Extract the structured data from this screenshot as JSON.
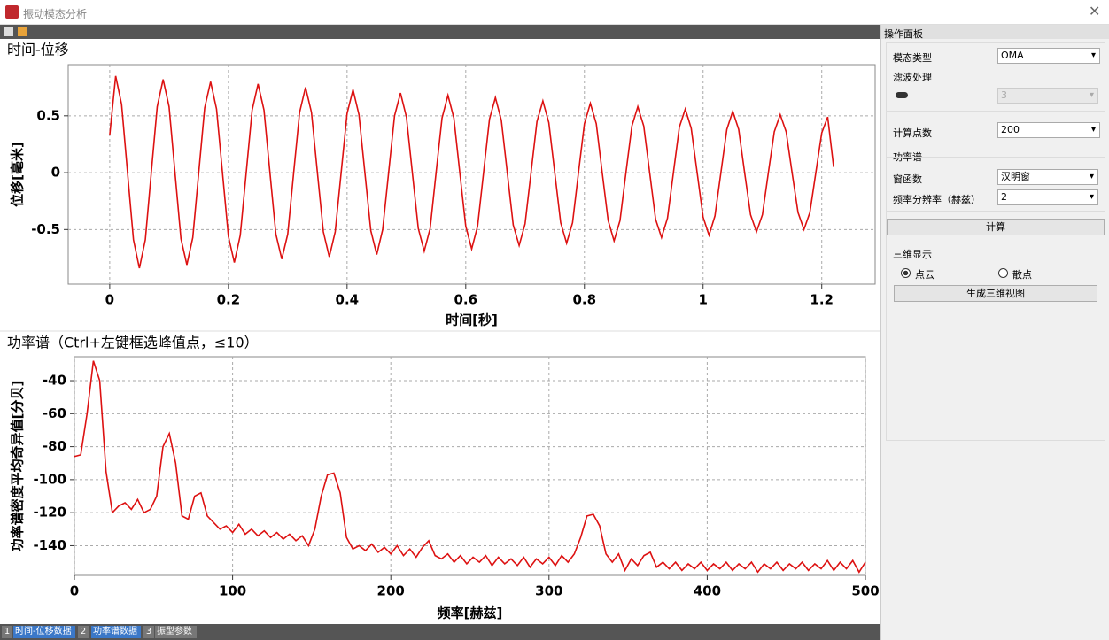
{
  "window": {
    "title": "振动模态分析"
  },
  "chart_data": [
    {
      "type": "line",
      "title": "时间-位移",
      "xlabel": "时间[秒]",
      "ylabel": "位移[毫米]",
      "color": "#dd1111",
      "grid": true,
      "xlim": [
        -0.07,
        1.29
      ],
      "ylim": [
        -0.98,
        0.95
      ],
      "xticks": [
        0,
        0.2,
        0.4,
        0.6,
        0.8,
        1,
        1.2
      ],
      "yticks": [
        -0.5,
        0,
        0.5
      ],
      "x": [
        0,
        0.01,
        0.02,
        0.03,
        0.04,
        0.05,
        0.06,
        0.07,
        0.08,
        0.09,
        0.1,
        0.11,
        0.12,
        0.13,
        0.14,
        0.15,
        0.16,
        0.17,
        0.18,
        0.19,
        0.2,
        0.21,
        0.22,
        0.23,
        0.24,
        0.25,
        0.26,
        0.27,
        0.28,
        0.29,
        0.3,
        0.31,
        0.32,
        0.33,
        0.34,
        0.35,
        0.36,
        0.37,
        0.38,
        0.39,
        0.4,
        0.41,
        0.42,
        0.43,
        0.44,
        0.45,
        0.46,
        0.47,
        0.48,
        0.49,
        0.5,
        0.51,
        0.52,
        0.53,
        0.54,
        0.55,
        0.56,
        0.57,
        0.58,
        0.59,
        0.6,
        0.61,
        0.62,
        0.63,
        0.64,
        0.65,
        0.66,
        0.67,
        0.68,
        0.69,
        0.7,
        0.71,
        0.72,
        0.73,
        0.74,
        0.75,
        0.76,
        0.77,
        0.78,
        0.79,
        0.8,
        0.81,
        0.82,
        0.83,
        0.84,
        0.85,
        0.86,
        0.87,
        0.88,
        0.89,
        0.9,
        0.91,
        0.92,
        0.93,
        0.94,
        0.95,
        0.96,
        0.97,
        0.98,
        0.99,
        1,
        1.01,
        1.02,
        1.03,
        1.04,
        1.05,
        1.06,
        1.07,
        1.08,
        1.09,
        1.1,
        1.11,
        1.12,
        1.13,
        1.14,
        1.15,
        1.16,
        1.17,
        1.18,
        1.19,
        1.2,
        1.21,
        1.22
      ],
      "values": [
        0.33,
        0.85,
        0.6,
        0,
        -0.59,
        -0.84,
        -0.59,
        0,
        0.58,
        0.82,
        0.58,
        0,
        -0.58,
        -0.81,
        -0.57,
        0,
        0.57,
        0.8,
        0.56,
        0,
        -0.56,
        -0.79,
        -0.55,
        0,
        0.55,
        0.78,
        0.55,
        0,
        -0.54,
        -0.76,
        -0.54,
        0,
        0.53,
        0.75,
        0.53,
        0,
        -0.52,
        -0.74,
        -0.52,
        0,
        0.52,
        0.73,
        0.51,
        0,
        -0.51,
        -0.72,
        -0.5,
        0,
        0.5,
        0.7,
        0.49,
        0,
        -0.49,
        -0.69,
        -0.49,
        0,
        0.48,
        0.68,
        0.48,
        0,
        -0.47,
        -0.67,
        -0.47,
        0,
        0.47,
        0.66,
        0.46,
        0,
        -0.46,
        -0.64,
        -0.45,
        0,
        0.45,
        0.63,
        0.44,
        0,
        -0.44,
        -0.62,
        -0.44,
        0,
        0.43,
        0.61,
        0.43,
        0,
        -0.42,
        -0.6,
        -0.42,
        0,
        0.41,
        0.58,
        0.41,
        0,
        -0.41,
        -0.57,
        -0.4,
        0,
        0.4,
        0.56,
        0.39,
        0,
        -0.39,
        -0.55,
        -0.38,
        0,
        0.38,
        0.54,
        0.38,
        0,
        -0.37,
        -0.52,
        -0.37,
        0,
        0.36,
        0.51,
        0.36,
        0,
        -0.35,
        -0.5,
        -0.35,
        0,
        0.35,
        0.49,
        0.05
      ]
    },
    {
      "type": "line",
      "title": "功率谱（Ctrl+左键框选峰值点，≤10）",
      "xlabel": "频率[赫兹]",
      "ylabel": "功率谱密度平均奇异值[分贝]",
      "color": "#dd1111",
      "grid": true,
      "xlim": [
        0,
        500
      ],
      "ylim": [
        -158,
        -25.5
      ],
      "xticks": [
        0,
        100,
        200,
        300,
        400,
        500
      ],
      "yticks": [
        -140,
        -120,
        -100,
        -80,
        -60,
        -40
      ],
      "x": [
        0,
        4,
        8,
        12,
        16,
        20,
        24,
        28,
        32,
        36,
        40,
        44,
        48,
        52,
        56,
        60,
        64,
        68,
        72,
        76,
        80,
        84,
        88,
        92,
        96,
        100,
        104,
        108,
        112,
        116,
        120,
        124,
        128,
        132,
        136,
        140,
        144,
        148,
        152,
        156,
        160,
        164,
        168,
        172,
        176,
        180,
        184,
        188,
        192,
        196,
        200,
        204,
        208,
        212,
        216,
        220,
        224,
        228,
        232,
        236,
        240,
        244,
        248,
        252,
        256,
        260,
        264,
        268,
        272,
        276,
        280,
        284,
        288,
        292,
        296,
        300,
        304,
        308,
        312,
        316,
        320,
        324,
        328,
        332,
        336,
        340,
        344,
        348,
        352,
        356,
        360,
        364,
        368,
        372,
        376,
        380,
        384,
        388,
        392,
        396,
        400,
        404,
        408,
        412,
        416,
        420,
        424,
        428,
        432,
        436,
        440,
        444,
        448,
        452,
        456,
        460,
        464,
        468,
        472,
        476,
        480,
        484,
        488,
        492,
        496,
        500
      ],
      "values": [
        -86,
        -85,
        -60,
        -28,
        -40,
        -95,
        -120,
        -116,
        -114,
        -118,
        -112,
        -120,
        -118,
        -110,
        -80,
        -72,
        -90,
        -122,
        -124,
        -110,
        -108,
        -122,
        -126,
        -130,
        -128,
        -132,
        -127,
        -133,
        -130,
        -134,
        -131,
        -135,
        -132,
        -136,
        -133,
        -137,
        -134,
        -140,
        -130,
        -110,
        -97,
        -96,
        -108,
        -135,
        -142,
        -140,
        -143,
        -139,
        -144,
        -141,
        -145,
        -140,
        -146,
        -142,
        -147,
        -141,
        -137,
        -146,
        -148,
        -145,
        -150,
        -146,
        -151,
        -147,
        -150,
        -146,
        -152,
        -147,
        -151,
        -148,
        -152,
        -147,
        -153,
        -148,
        -151,
        -147,
        -152,
        -146,
        -150,
        -145,
        -135,
        -122,
        -121,
        -128,
        -145,
        -150,
        -145,
        -155,
        -148,
        -152,
        -146,
        -144,
        -153,
        -150,
        -154,
        -150,
        -155,
        -151,
        -154,
        -150,
        -155,
        -151,
        -154,
        -150,
        -155,
        -151,
        -154,
        -150,
        -156,
        -151,
        -154,
        -150,
        -155,
        -151,
        -154,
        -150,
        -155,
        -151,
        -154,
        -149,
        -155,
        -150,
        -154,
        -149,
        -156,
        -150
      ]
    }
  ],
  "panel": {
    "title": "操作面板",
    "mode_label": "模态类型",
    "mode_value": "OMA",
    "filter_label": "滤波处理",
    "filter_value": 3,
    "points_label": "计算点数",
    "points_value": 200,
    "psd_group": "功率谱",
    "window_label": "窗函数",
    "window_value": "汉明窗",
    "resolution_label": "频率分辨率（赫兹）",
    "resolution_value": 2,
    "compute_button": "计算",
    "view3d_group": "三维显示",
    "radio_cloud": "点云",
    "radio_scatter": "散点",
    "generate_button": "生成三维视图"
  },
  "tabs": [
    {
      "number": 1,
      "label": "时间-位移数据"
    },
    {
      "number": 2,
      "label": "功率谱数据"
    },
    {
      "number": 3,
      "label": "振型参数"
    }
  ]
}
